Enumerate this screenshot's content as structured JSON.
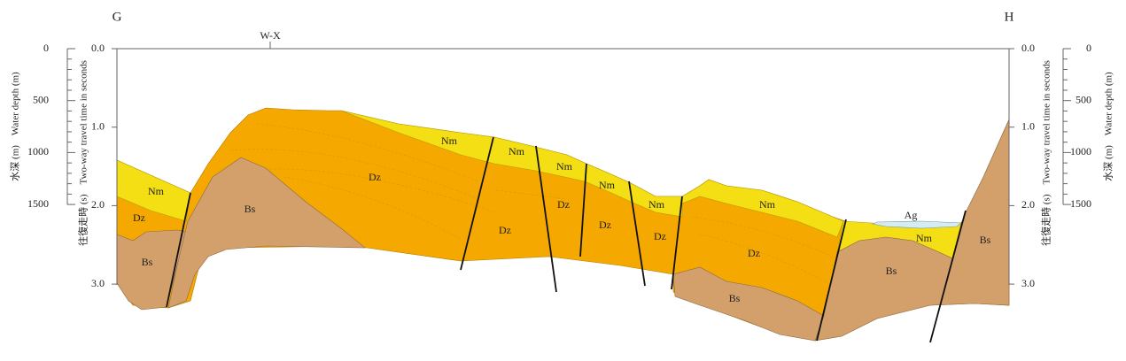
{
  "header": {
    "left": "G",
    "right": "H",
    "marker": "W-X"
  },
  "axes": {
    "depth_label": "水深 (m)　Water depth (m)",
    "time_label": "往復走時 (s)　Two-way travel time in seconds",
    "depth_ticks": [
      "0",
      "500",
      "1000",
      "1500"
    ],
    "time_ticks": [
      "0.0",
      "1.0",
      "2.0",
      "3.0"
    ]
  },
  "units": [
    "Nm",
    "Dz",
    "Bs",
    "Bs",
    "Dz",
    "Nm",
    "Nm",
    "Dz",
    "Nm",
    "Dz",
    "Nm",
    "Dz",
    "Nm",
    "Dz",
    "Nm",
    "Dz",
    "Bs",
    "Ag",
    "Nm",
    "Bs",
    "Bs"
  ]
}
